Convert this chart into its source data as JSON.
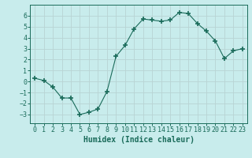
{
  "x": [
    0,
    1,
    2,
    3,
    4,
    5,
    6,
    7,
    8,
    9,
    10,
    11,
    12,
    13,
    14,
    15,
    16,
    17,
    18,
    19,
    20,
    21,
    22,
    23
  ],
  "y": [
    0.3,
    0.1,
    -0.5,
    -1.5,
    -1.5,
    -3.0,
    -2.8,
    -2.5,
    -0.9,
    2.3,
    3.3,
    4.8,
    5.7,
    5.6,
    5.5,
    5.6,
    6.3,
    6.2,
    5.3,
    4.6,
    3.7,
    2.1,
    2.8,
    3.0
  ],
  "line_color": "#1a6b5a",
  "marker": "+",
  "marker_size": 4,
  "marker_lw": 1.2,
  "bg_color": "#c8ecec",
  "grid_color": "#b8d4d4",
  "xlabel": "Humidex (Indice chaleur)",
  "xlim": [
    -0.5,
    23.5
  ],
  "ylim": [
    -3.8,
    7.0
  ],
  "yticks": [
    -3,
    -2,
    -1,
    0,
    1,
    2,
    3,
    4,
    5,
    6
  ],
  "xticks": [
    0,
    1,
    2,
    3,
    4,
    5,
    6,
    7,
    8,
    9,
    10,
    11,
    12,
    13,
    14,
    15,
    16,
    17,
    18,
    19,
    20,
    21,
    22,
    23
  ],
  "tick_fontsize": 6,
  "label_fontsize": 7,
  "line_width": 0.8
}
